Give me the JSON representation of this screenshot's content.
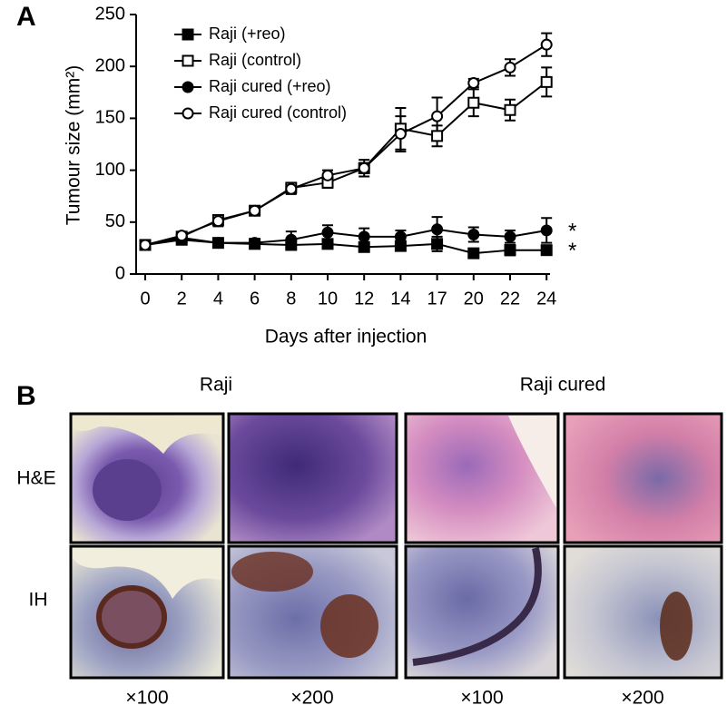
{
  "chart_data": {
    "type": "line",
    "panel_label": "A",
    "x_label": "Days after injection",
    "y_label": "Tumour size (mm²)",
    "categories": [
      "0",
      "2",
      "4",
      "6",
      "8",
      "10",
      "12",
      "14",
      "17",
      "20",
      "22",
      "24"
    ],
    "ylim": [
      0,
      250
    ],
    "yticks": [
      0,
      50,
      100,
      150,
      200,
      250
    ],
    "series": [
      {
        "name": "Raji (+reo)",
        "color": "#000000",
        "marker": "square",
        "filled": true,
        "values": [
          28,
          33,
          30,
          29,
          28,
          29,
          26,
          27,
          29,
          20,
          23,
          23
        ],
        "errors": [
          3,
          3,
          3,
          3,
          4,
          4,
          4,
          4,
          7,
          4,
          5,
          4
        ]
      },
      {
        "name": "Raji (control)",
        "color": "#000000",
        "marker": "square",
        "filled": false,
        "values": [
          28,
          36,
          52,
          61,
          83,
          88,
          102,
          140,
          133,
          165,
          158,
          185
        ],
        "errors": [
          2,
          2,
          4,
          4,
          5,
          5,
          5,
          20,
          10,
          13,
          10,
          14
        ]
      },
      {
        "name": "Raji cured (+reo)",
        "color": "#000000",
        "marker": "circle",
        "filled": true,
        "values": [
          28,
          35,
          30,
          30,
          33,
          40,
          36,
          36,
          43,
          38,
          36,
          42
        ],
        "errors": [
          2,
          3,
          3,
          4,
          8,
          7,
          8,
          6,
          12,
          7,
          6,
          12
        ]
      },
      {
        "name": "Raji cured (control)",
        "color": "#000000",
        "marker": "circle",
        "filled": false,
        "values": [
          28,
          37,
          51,
          61,
          82,
          95,
          102,
          135,
          152,
          184,
          199,
          221
        ],
        "errors": [
          2,
          3,
          5,
          4,
          5,
          5,
          8,
          17,
          18,
          4,
          8,
          11
        ]
      }
    ],
    "annotations": [
      {
        "text": "*",
        "y": 42
      },
      {
        "text": "*",
        "y": 23
      }
    ]
  },
  "panel_b": {
    "label": "B",
    "group_titles": [
      "Raji",
      "Raji cured"
    ],
    "row_labels": [
      "H&E",
      "IH"
    ],
    "magnifications": [
      "×100",
      "×200",
      "×100",
      "×200"
    ]
  }
}
